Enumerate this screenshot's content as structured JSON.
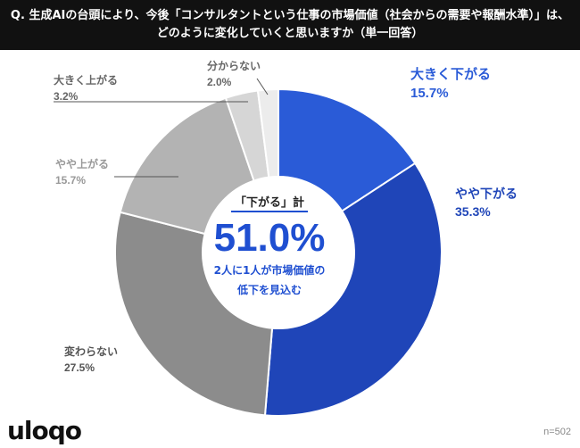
{
  "header": {
    "line1": "Q. 生成AIの台頭により、今後「コンサルタントという仕事の市場価値（社会からの需要や報酬水準）」は、",
    "line2": "どのように変化していくと思いますか（単一回答）"
  },
  "chart_data": {
    "type": "pie",
    "donut": true,
    "slices": [
      {
        "label": "大きく下がる",
        "value": 15.7,
        "value_text": "15.7%",
        "color": "#2a5bd7",
        "text_color": "#2a5bd7"
      },
      {
        "label": "やや下がる",
        "value": 35.3,
        "value_text": "35.3%",
        "color": "#1f45b8",
        "text_color": "#1f45b8"
      },
      {
        "label": "変わらない",
        "value": 27.5,
        "value_text": "27.5%",
        "color": "#8c8c8c",
        "text_color": "#555555"
      },
      {
        "label": "やや上がる",
        "value": 15.7,
        "value_text": "15.7%",
        "color": "#b3b3b3",
        "text_color": "#999999"
      },
      {
        "label": "大きく上がる",
        "value": 3.2,
        "value_text": "3.2%",
        "color": "#d6d6d6",
        "text_color": "#666666"
      },
      {
        "label": "分からない",
        "value": 2.0,
        "value_text": "2.0%",
        "color": "#ececec",
        "text_color": "#666666"
      }
    ]
  },
  "center": {
    "heading": "「下がる」計",
    "value": "51.0%",
    "note_line1": "2人に1人が市場価値の",
    "note_line2": "低下を見込む"
  },
  "footer": {
    "logo": "uloqo",
    "sample": "n=502"
  }
}
